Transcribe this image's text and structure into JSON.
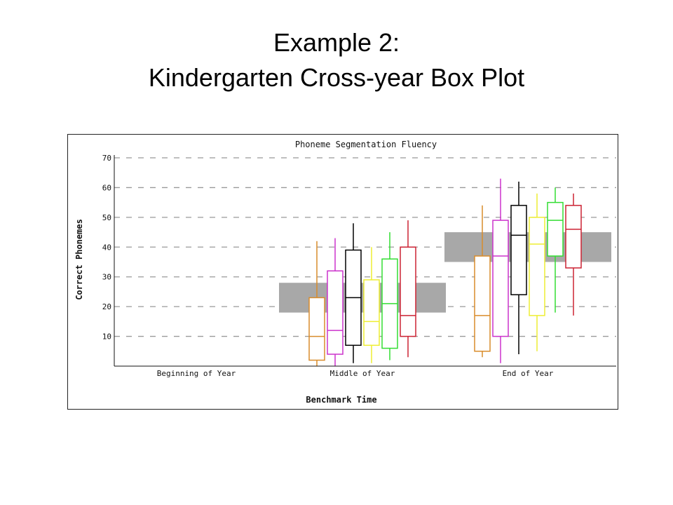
{
  "slide": {
    "title_line1": "Example 2:",
    "title_line2": "Kindergarten Cross-year Box Plot"
  },
  "chart_data": {
    "type": "box",
    "title": "Phoneme Segmentation Fluency",
    "xlabel": "Benchmark Time",
    "ylabel": "Correct Phonemes",
    "ylim": [
      0,
      70
    ],
    "yticks": [
      10,
      20,
      30,
      40,
      50,
      60,
      70
    ],
    "grid": true,
    "categories": [
      "Beginning of Year",
      "Middle of Year",
      "End of Year"
    ],
    "benchmark_bands": [
      {
        "category": "Middle of Year",
        "low": 18,
        "high": 28,
        "color": "#a8a8a8"
      },
      {
        "category": "End of Year",
        "low": 35,
        "high": 45,
        "color": "#a8a8a8"
      }
    ],
    "series_colors": [
      "#d98c2b",
      "#cc33cc",
      "#000000",
      "#eeee33",
      "#33dd33",
      "#cc2233"
    ],
    "boxes": [
      {
        "category": "Middle of Year",
        "series": 0,
        "min": 0,
        "q1": 2,
        "median": 10,
        "q3": 23,
        "max": 42
      },
      {
        "category": "Middle of Year",
        "series": 1,
        "min": 0,
        "q1": 4,
        "median": 12,
        "q3": 32,
        "max": 43
      },
      {
        "category": "Middle of Year",
        "series": 2,
        "min": 1,
        "q1": 7,
        "median": 23,
        "q3": 39,
        "max": 48
      },
      {
        "category": "Middle of Year",
        "series": 3,
        "min": 1,
        "q1": 7,
        "median": 15,
        "q3": 29,
        "max": 40
      },
      {
        "category": "Middle of Year",
        "series": 4,
        "min": 2,
        "q1": 6,
        "median": 21,
        "q3": 36,
        "max": 45
      },
      {
        "category": "Middle of Year",
        "series": 5,
        "min": 3,
        "q1": 10,
        "median": 17,
        "q3": 40,
        "max": 49
      },
      {
        "category": "End of Year",
        "series": 0,
        "min": 3,
        "q1": 5,
        "median": 17,
        "q3": 37,
        "max": 54
      },
      {
        "category": "End of Year",
        "series": 1,
        "min": 1,
        "q1": 10,
        "median": 37,
        "q3": 49,
        "max": 63
      },
      {
        "category": "End of Year",
        "series": 2,
        "min": 4,
        "q1": 24,
        "median": 44,
        "q3": 54,
        "max": 62
      },
      {
        "category": "End of Year",
        "series": 3,
        "min": 5,
        "q1": 17,
        "median": 41,
        "q3": 50,
        "max": 58
      },
      {
        "category": "End of Year",
        "series": 4,
        "min": 18,
        "q1": 37,
        "median": 49,
        "q3": 55,
        "max": 60
      },
      {
        "category": "End of Year",
        "series": 5,
        "min": 17,
        "q1": 33,
        "median": 46,
        "q3": 54,
        "max": 58
      }
    ]
  }
}
